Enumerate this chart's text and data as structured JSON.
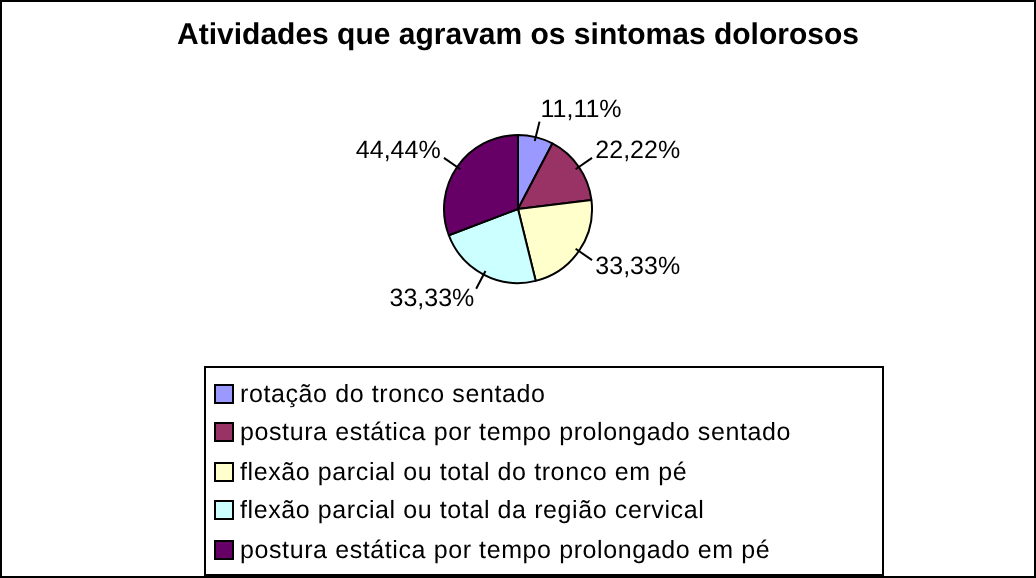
{
  "chart_data": {
    "type": "pie",
    "title": "Atividades que agravam os sintomas dolorosos",
    "categories": [
      "rotação do tronco sentado",
      "postura estática por tempo prolongado sentado",
      "flexão parcial ou total do tronco em pé",
      "flexão parcial ou total da região cervical",
      "postura estática por tempo prolongado em pé"
    ],
    "values": [
      11.11,
      22.22,
      33.33,
      33.33,
      44.44
    ],
    "value_labels": [
      "11,11%",
      "22,22%",
      "33,33%",
      "33,33%",
      "44,44%"
    ],
    "colors": [
      "#9999ff",
      "#993366",
      "#ffffcc",
      "#ccffff",
      "#660066"
    ],
    "legend": "bottom"
  }
}
